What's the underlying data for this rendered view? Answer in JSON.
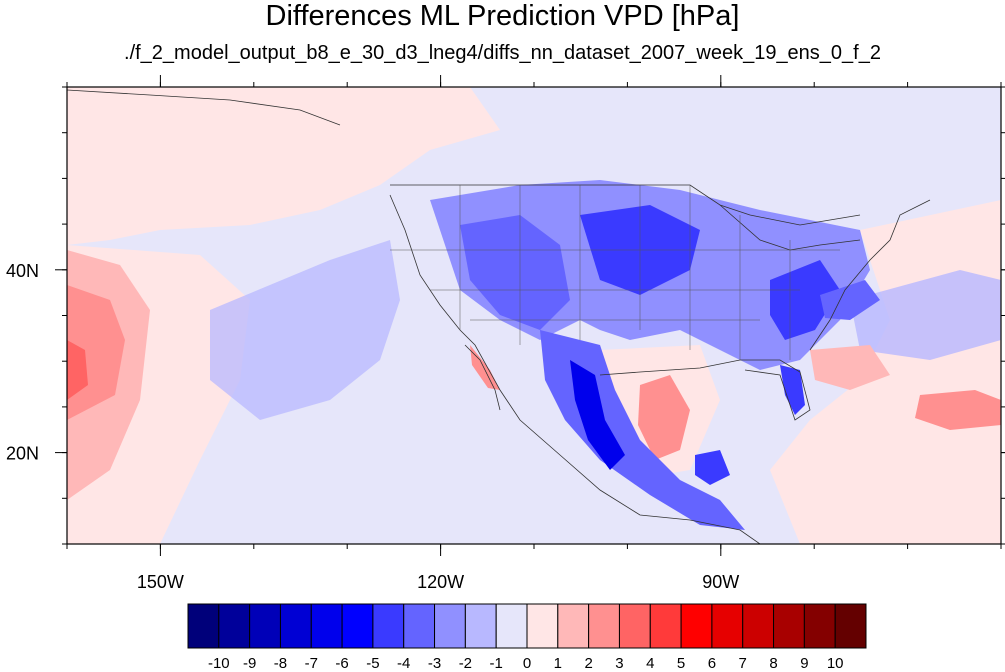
{
  "title": "Differences ML Prediction VPD [hPa]",
  "subtitle": "./f_2_model_output_b8_e_30_d3_lneg4/diffs_nn_dataset_2007_week_19_ens_0_f_2",
  "map": {
    "lon_range": [
      -160,
      -60
    ],
    "lat_range": [
      10,
      60
    ],
    "lon_ticks": [
      {
        "value": -150,
        "label": "150W"
      },
      {
        "value": -120,
        "label": "120W"
      },
      {
        "value": -90,
        "label": "90W"
      }
    ],
    "lat_ticks": [
      {
        "value": 40,
        "label": "40N"
      },
      {
        "value": 20,
        "label": "20N"
      }
    ]
  },
  "colorbar": {
    "labels": [
      "-10",
      "-9",
      "-8",
      "-7",
      "-6",
      "-5",
      "-4",
      "-3",
      "-2",
      "-1",
      "0",
      "1",
      "2",
      "3",
      "4",
      "5",
      "6",
      "7",
      "8",
      "9",
      "10"
    ],
    "colors": [
      "#00007a",
      "#00009a",
      "#0000b8",
      "#0000d4",
      "#0000ec",
      "#0000ff",
      "#3a3aff",
      "#6464ff",
      "#9090ff",
      "#b8b8ff",
      "#e6e6fa",
      "#ffe6e6",
      "#ffb8b8",
      "#ff9090",
      "#ff6464",
      "#ff3a3a",
      "#ff0000",
      "#e60000",
      "#cc0000",
      "#a80000",
      "#840000",
      "#640000"
    ]
  }
}
